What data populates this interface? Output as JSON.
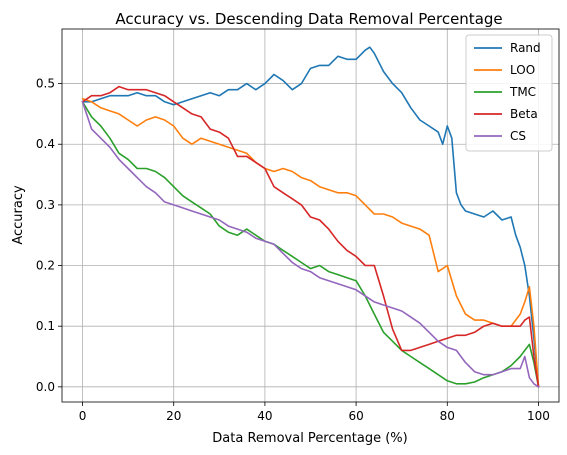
{
  "chart_data": {
    "type": "line",
    "title": "Accuracy vs. Descending Data Removal Percentage",
    "xlabel": "Data Removal Percentage (%)",
    "ylabel": "Accuracy",
    "xlim": [
      -4.5,
      104.5
    ],
    "ylim": [
      -0.025,
      0.59
    ],
    "xticks": [
      0,
      20,
      40,
      60,
      80,
      100
    ],
    "yticks": [
      0.0,
      0.1,
      0.2,
      0.3,
      0.4,
      0.5
    ],
    "xtick_labels": [
      "0",
      "20",
      "40",
      "60",
      "80",
      "100"
    ],
    "ytick_labels": [
      "0.0",
      "0.1",
      "0.2",
      "0.3",
      "0.4",
      "0.5"
    ],
    "grid": true,
    "legend_position": "upper right",
    "series": [
      {
        "name": "Rand",
        "color": "#1f77b4",
        "x": [
          0,
          2,
          4,
          6,
          8,
          10,
          12,
          14,
          16,
          18,
          20,
          22,
          24,
          26,
          28,
          30,
          32,
          34,
          36,
          38,
          40,
          42,
          44,
          46,
          48,
          50,
          52,
          54,
          56,
          58,
          60,
          62,
          63,
          64,
          66,
          68,
          70,
          72,
          74,
          76,
          78,
          79,
          80,
          81,
          82,
          83,
          84,
          86,
          88,
          90,
          92,
          94,
          95,
          96,
          97,
          98,
          99,
          100
        ],
        "y": [
          0.47,
          0.47,
          0.475,
          0.48,
          0.48,
          0.48,
          0.485,
          0.48,
          0.48,
          0.47,
          0.465,
          0.47,
          0.475,
          0.48,
          0.485,
          0.48,
          0.49,
          0.49,
          0.5,
          0.49,
          0.5,
          0.515,
          0.505,
          0.49,
          0.5,
          0.525,
          0.53,
          0.53,
          0.545,
          0.54,
          0.54,
          0.555,
          0.56,
          0.55,
          0.52,
          0.5,
          0.485,
          0.46,
          0.44,
          0.43,
          0.42,
          0.4,
          0.43,
          0.41,
          0.32,
          0.3,
          0.29,
          0.285,
          0.28,
          0.29,
          0.275,
          0.28,
          0.25,
          0.23,
          0.2,
          0.15,
          0.08,
          0.0
        ]
      },
      {
        "name": "LOO",
        "color": "#ff7f0e",
        "x": [
          0,
          2,
          4,
          6,
          8,
          10,
          12,
          14,
          16,
          18,
          20,
          22,
          24,
          26,
          28,
          30,
          32,
          34,
          36,
          38,
          40,
          42,
          44,
          46,
          48,
          50,
          52,
          54,
          56,
          58,
          60,
          62,
          64,
          66,
          68,
          70,
          72,
          74,
          76,
          78,
          80,
          82,
          84,
          86,
          88,
          90,
          92,
          94,
          96,
          97,
          98,
          99,
          100
        ],
        "y": [
          0.475,
          0.47,
          0.46,
          0.455,
          0.45,
          0.44,
          0.43,
          0.44,
          0.445,
          0.44,
          0.43,
          0.41,
          0.4,
          0.41,
          0.405,
          0.4,
          0.395,
          0.39,
          0.385,
          0.37,
          0.36,
          0.355,
          0.36,
          0.355,
          0.345,
          0.34,
          0.33,
          0.325,
          0.32,
          0.32,
          0.315,
          0.3,
          0.285,
          0.285,
          0.28,
          0.27,
          0.265,
          0.26,
          0.25,
          0.19,
          0.2,
          0.15,
          0.12,
          0.11,
          0.11,
          0.105,
          0.1,
          0.1,
          0.12,
          0.14,
          0.165,
          0.1,
          0.0
        ]
      },
      {
        "name": "TMC",
        "color": "#2ca02c",
        "x": [
          0,
          2,
          4,
          6,
          8,
          10,
          12,
          14,
          16,
          18,
          20,
          22,
          24,
          26,
          28,
          30,
          32,
          34,
          36,
          38,
          40,
          42,
          44,
          46,
          48,
          50,
          52,
          54,
          56,
          58,
          60,
          62,
          64,
          66,
          68,
          70,
          72,
          74,
          76,
          78,
          80,
          82,
          84,
          86,
          88,
          90,
          92,
          94,
          96,
          97,
          98,
          99,
          100
        ],
        "y": [
          0.47,
          0.445,
          0.43,
          0.41,
          0.385,
          0.375,
          0.36,
          0.36,
          0.355,
          0.345,
          0.33,
          0.315,
          0.305,
          0.295,
          0.285,
          0.265,
          0.255,
          0.25,
          0.26,
          0.25,
          0.24,
          0.235,
          0.225,
          0.215,
          0.205,
          0.195,
          0.2,
          0.19,
          0.185,
          0.18,
          0.175,
          0.15,
          0.12,
          0.09,
          0.075,
          0.06,
          0.05,
          0.04,
          0.03,
          0.02,
          0.01,
          0.005,
          0.005,
          0.008,
          0.015,
          0.02,
          0.025,
          0.035,
          0.05,
          0.06,
          0.07,
          0.04,
          0.0
        ]
      },
      {
        "name": "Beta",
        "color": "#d62728",
        "x": [
          0,
          2,
          4,
          6,
          8,
          10,
          12,
          14,
          16,
          18,
          20,
          22,
          24,
          26,
          28,
          30,
          32,
          34,
          36,
          38,
          40,
          42,
          44,
          46,
          48,
          50,
          52,
          54,
          56,
          58,
          60,
          62,
          64,
          66,
          68,
          70,
          72,
          74,
          76,
          78,
          80,
          82,
          84,
          86,
          88,
          90,
          92,
          94,
          96,
          97,
          98,
          99,
          100
        ],
        "y": [
          0.47,
          0.48,
          0.48,
          0.485,
          0.495,
          0.49,
          0.49,
          0.49,
          0.485,
          0.48,
          0.47,
          0.46,
          0.45,
          0.445,
          0.425,
          0.42,
          0.41,
          0.38,
          0.38,
          0.37,
          0.36,
          0.33,
          0.32,
          0.31,
          0.3,
          0.28,
          0.275,
          0.26,
          0.24,
          0.225,
          0.215,
          0.2,
          0.2,
          0.15,
          0.095,
          0.06,
          0.06,
          0.065,
          0.07,
          0.075,
          0.08,
          0.085,
          0.085,
          0.09,
          0.1,
          0.105,
          0.1,
          0.1,
          0.1,
          0.11,
          0.115,
          0.05,
          0.0
        ]
      },
      {
        "name": "CS",
        "color": "#9467bd",
        "x": [
          0,
          2,
          4,
          6,
          8,
          10,
          12,
          14,
          16,
          18,
          20,
          22,
          24,
          26,
          28,
          30,
          32,
          34,
          36,
          38,
          40,
          42,
          44,
          46,
          48,
          50,
          52,
          54,
          56,
          58,
          60,
          62,
          64,
          66,
          68,
          70,
          72,
          74,
          76,
          78,
          80,
          82,
          84,
          86,
          88,
          90,
          92,
          94,
          96,
          97,
          98,
          99,
          100
        ],
        "y": [
          0.47,
          0.425,
          0.41,
          0.395,
          0.375,
          0.36,
          0.345,
          0.33,
          0.32,
          0.305,
          0.3,
          0.295,
          0.29,
          0.285,
          0.28,
          0.275,
          0.265,
          0.26,
          0.255,
          0.245,
          0.24,
          0.235,
          0.22,
          0.205,
          0.195,
          0.19,
          0.18,
          0.175,
          0.17,
          0.165,
          0.16,
          0.15,
          0.14,
          0.135,
          0.13,
          0.125,
          0.115,
          0.105,
          0.09,
          0.075,
          0.065,
          0.06,
          0.04,
          0.025,
          0.02,
          0.02,
          0.025,
          0.03,
          0.03,
          0.05,
          0.015,
          0.005,
          0.0
        ]
      }
    ]
  }
}
